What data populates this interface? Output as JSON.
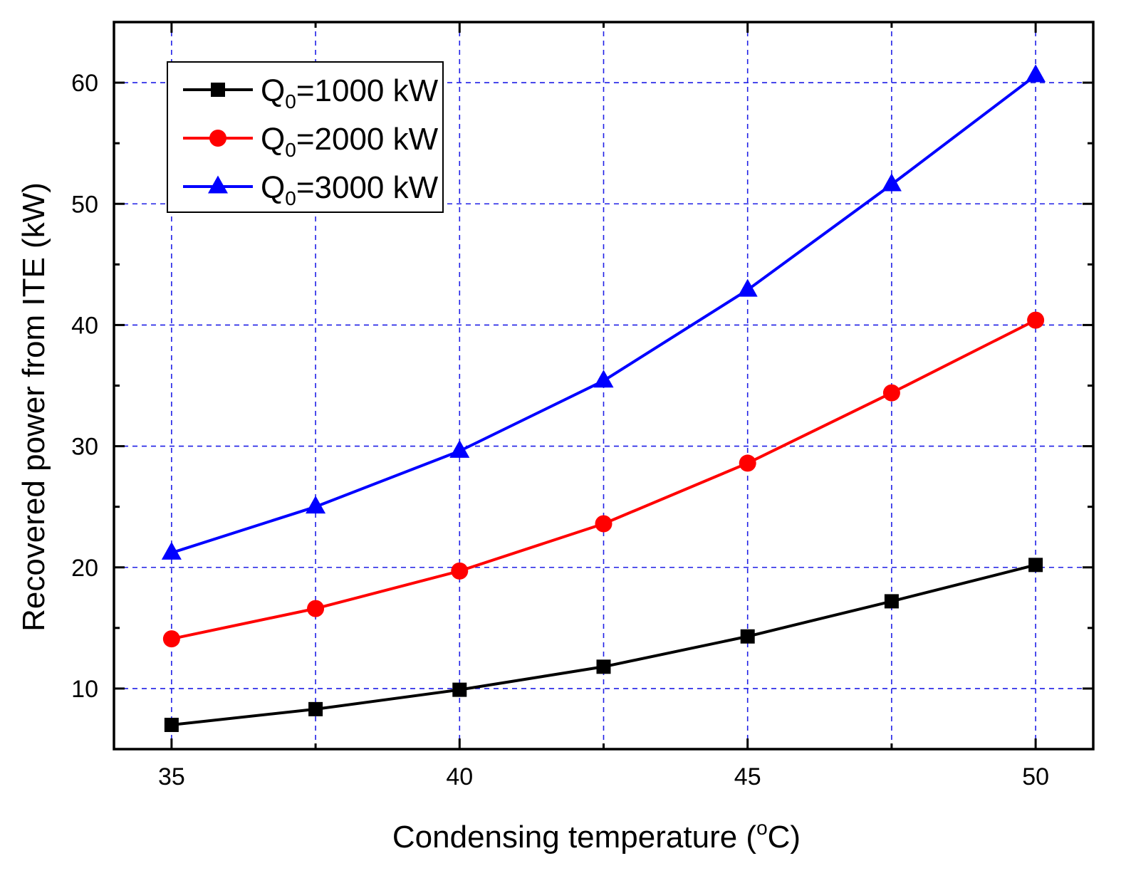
{
  "chart_data": {
    "type": "line",
    "xlabel": "Condensing temperature (",
    "xlabel_sup": "o",
    "xlabel_tail": "C)",
    "ylabel": "Recovered power from ITE (kW)",
    "xlim": [
      34,
      51
    ],
    "ylim": [
      5,
      65
    ],
    "x": [
      35,
      37.5,
      40,
      42.5,
      45,
      47.5,
      50
    ],
    "x_ticks": [
      35,
      40,
      45,
      50
    ],
    "x_tick_labels": [
      "35",
      "40",
      "45",
      "50"
    ],
    "y_ticks": [
      10,
      20,
      30,
      40,
      50,
      60
    ],
    "y_tick_labels": [
      "10",
      "20",
      "30",
      "40",
      "50",
      "60"
    ],
    "x_grid": [
      35,
      37.5,
      40,
      42.5,
      45,
      47.5,
      50
    ],
    "y_grid": [
      10,
      20,
      30,
      40,
      50,
      60
    ],
    "grid": true,
    "legend_position": "top-left",
    "series": [
      {
        "name_prefix": "Q",
        "name_sub": "0",
        "name_suffix": "=1000 kW",
        "color": "#000000",
        "marker": "square",
        "values": [
          7.0,
          8.3,
          9.9,
          11.8,
          14.3,
          17.2,
          20.2
        ]
      },
      {
        "name_prefix": "Q",
        "name_sub": "0",
        "name_suffix": "=2000 kW",
        "color": "#ff0000",
        "marker": "circle",
        "values": [
          14.1,
          16.6,
          19.7,
          23.6,
          28.6,
          34.4,
          40.4
        ]
      },
      {
        "name_prefix": "Q",
        "name_sub": "0",
        "name_suffix": "=3000 kW",
        "color": "#0000ff",
        "marker": "triangle",
        "values": [
          21.2,
          25.0,
          29.6,
          35.4,
          42.9,
          51.6,
          60.6
        ]
      }
    ]
  }
}
